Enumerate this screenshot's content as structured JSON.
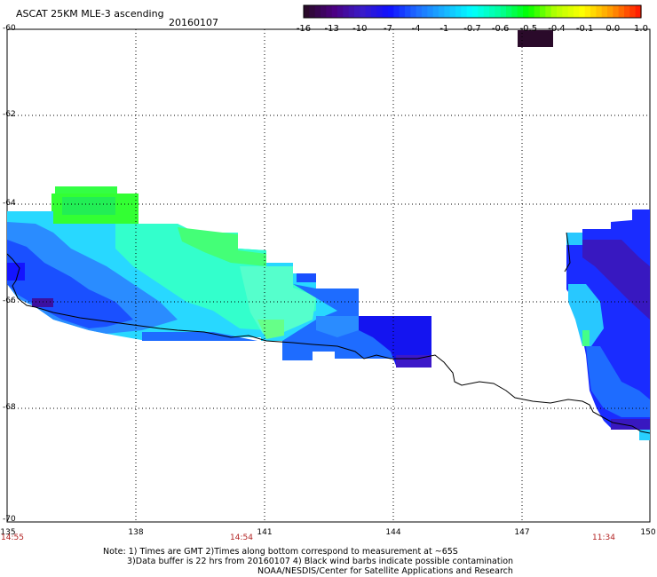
{
  "title": "ASCAT 25KM MLE-3 ascending",
  "date": "20160107",
  "colorbar": {
    "labels": [
      "-16",
      "-13",
      "-10",
      "-7",
      "-4",
      "-1",
      "-0.7",
      "-0.6",
      "-0.5",
      "-0.4",
      "-0.1",
      "0.0",
      "1.0"
    ],
    "colors": [
      "#2a0a2a",
      "#4b0082",
      "#3a1cc8",
      "#1010ff",
      "#1e6cff",
      "#18b4ff",
      "#00ffff",
      "#00ff9a",
      "#00ff00",
      "#b4ff00",
      "#ffff00",
      "#ff9a00",
      "#ff1e00"
    ]
  },
  "legend_swatch_color": "#2a0a2a",
  "axes": {
    "lat_labels": [
      "-60",
      "-62",
      "-64",
      "-66",
      "-68",
      "-70"
    ],
    "lon_labels": [
      "135",
      "138",
      "141",
      "144",
      "147",
      "150"
    ],
    "time_labels": [
      "14:55",
      "14:54",
      "11:34"
    ]
  },
  "notes": {
    "line1": "Note: 1) Times are GMT 2)Times along bottom correspond to measurement at ~65S",
    "line2": "3)Data buffer is 22 hrs from 20160107 4) Black wind barbs indicate possible contamination",
    "line3": "NOAA/NESDIS/Center for Satellite Applications and Research"
  }
}
